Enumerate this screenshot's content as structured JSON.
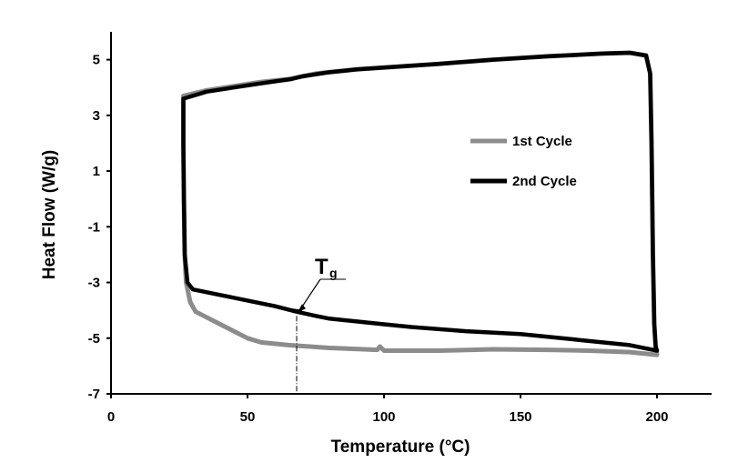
{
  "chart_data": {
    "type": "line",
    "title": "",
    "xlabel": "Temperature (°C)",
    "ylabel": "Heat Flow (W/g)",
    "xlim": [
      0,
      220
    ],
    "ylim": [
      -7,
      6
    ],
    "x_ticks": [
      0,
      50,
      100,
      150,
      200
    ],
    "y_ticks": [
      -7,
      -5,
      -3,
      -1,
      1,
      3,
      5
    ],
    "grid": false,
    "legend_position": "right",
    "series": [
      {
        "name": "1st Cycle",
        "color": "#8c8c8c",
        "points": [
          [
            26.5,
            3.7
          ],
          [
            35,
            3.9
          ],
          [
            45,
            4.05
          ],
          [
            55,
            4.2
          ],
          [
            65,
            4.3
          ],
          [
            75,
            4.5
          ],
          [
            90,
            4.65
          ],
          [
            100,
            4.72
          ],
          [
            120,
            4.85
          ],
          [
            140,
            5.0
          ],
          [
            160,
            5.12
          ],
          [
            180,
            5.22
          ],
          [
            190,
            5.25
          ],
          [
            196,
            5.15
          ],
          [
            197.5,
            4.5
          ],
          [
            198,
            2
          ],
          [
            198.5,
            -2
          ],
          [
            199,
            -4.5
          ],
          [
            199.5,
            -5.3
          ],
          [
            200,
            -5.6
          ],
          [
            190,
            -5.5
          ],
          [
            175,
            -5.45
          ],
          [
            160,
            -5.42
          ],
          [
            140,
            -5.4
          ],
          [
            120,
            -5.45
          ],
          [
            100,
            -5.45
          ],
          [
            98.5,
            -5.3
          ],
          [
            97.5,
            -5.42
          ],
          [
            80,
            -5.35
          ],
          [
            65,
            -5.25
          ],
          [
            55,
            -5.15
          ],
          [
            50,
            -5.0
          ],
          [
            45,
            -4.75
          ],
          [
            40,
            -4.5
          ],
          [
            35,
            -4.25
          ],
          [
            31,
            -4.05
          ],
          [
            29,
            -3.7
          ],
          [
            27.5,
            -3.0
          ],
          [
            27,
            -2
          ],
          [
            26.7,
            0
          ],
          [
            26.5,
            2
          ],
          [
            26.5,
            3.7
          ]
        ]
      },
      {
        "name": "2nd Cycle",
        "color": "#000000",
        "points": [
          [
            26.5,
            3.6
          ],
          [
            35,
            3.85
          ],
          [
            45,
            4.0
          ],
          [
            55,
            4.15
          ],
          [
            62,
            4.25
          ],
          [
            66,
            4.3
          ],
          [
            70,
            4.4
          ],
          [
            80,
            4.55
          ],
          [
            90,
            4.65
          ],
          [
            100,
            4.72
          ],
          [
            120,
            4.85
          ],
          [
            140,
            5.0
          ],
          [
            160,
            5.12
          ],
          [
            180,
            5.22
          ],
          [
            190,
            5.25
          ],
          [
            196,
            5.15
          ],
          [
            197.5,
            4.5
          ],
          [
            198,
            2
          ],
          [
            198.5,
            -2
          ],
          [
            199,
            -4.5
          ],
          [
            199.5,
            -5.3
          ],
          [
            200,
            -5.45
          ],
          [
            190,
            -5.25
          ],
          [
            170,
            -5.05
          ],
          [
            150,
            -4.85
          ],
          [
            130,
            -4.75
          ],
          [
            110,
            -4.6
          ],
          [
            100,
            -4.5
          ],
          [
            90,
            -4.4
          ],
          [
            80,
            -4.3
          ],
          [
            75,
            -4.2
          ],
          [
            68,
            -4.05
          ],
          [
            60,
            -3.85
          ],
          [
            50,
            -3.65
          ],
          [
            40,
            -3.45
          ],
          [
            30,
            -3.25
          ],
          [
            28,
            -3.0
          ],
          [
            27,
            -2
          ],
          [
            26.7,
            0
          ],
          [
            26.5,
            2
          ],
          [
            26.5,
            3.6
          ]
        ]
      }
    ],
    "annotations": [
      {
        "label_main": "T",
        "label_sub": "g",
        "point": [
          68,
          -4.1
        ],
        "tangent": [
          [
            55,
            -3.8
          ],
          [
            70,
            -4.0
          ]
        ],
        "dropline_x": 68
      }
    ]
  }
}
